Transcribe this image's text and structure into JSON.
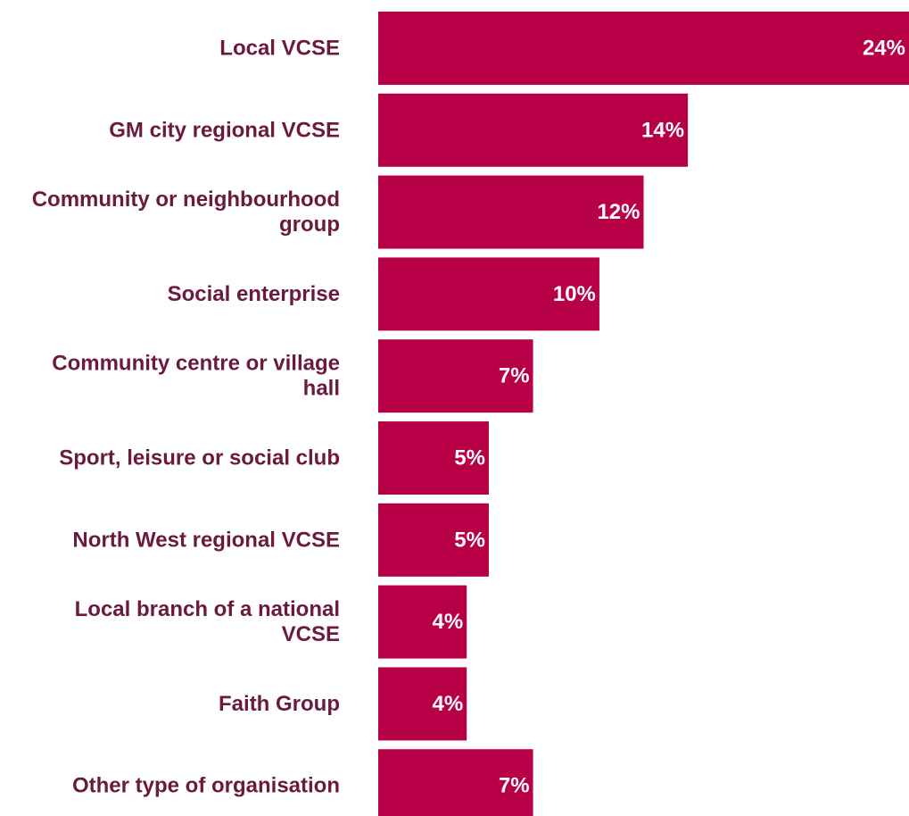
{
  "chart_data": {
    "type": "bar",
    "orientation": "horizontal",
    "title": "",
    "xlabel": "",
    "ylabel": "",
    "categories": [
      [
        "Local VCSE"
      ],
      [
        "GM city regional VCSE"
      ],
      [
        "Community or neighbourhood",
        "group"
      ],
      [
        "Social enterprise"
      ],
      [
        "Community centre or village",
        "hall"
      ],
      [
        "Sport, leisure or social club"
      ],
      [
        "North West regional VCSE"
      ],
      [
        "Local branch of a national",
        "VCSE"
      ],
      [
        "Faith Group"
      ],
      [
        "Other type of organisation"
      ]
    ],
    "values": [
      24,
      14,
      12,
      10,
      7,
      5,
      5,
      4,
      4,
      7
    ],
    "value_labels": [
      "24%",
      "14%",
      "12%",
      "10%",
      "7%",
      "5%",
      "5%",
      "4%",
      "4%",
      "7%"
    ],
    "unit": "%",
    "xlim": [
      0,
      24
    ],
    "grid": false,
    "legend": "none",
    "colors": {
      "bar": "#B70046",
      "category_text": "#6B1A3E",
      "value_text": "#FFFFFF"
    }
  }
}
